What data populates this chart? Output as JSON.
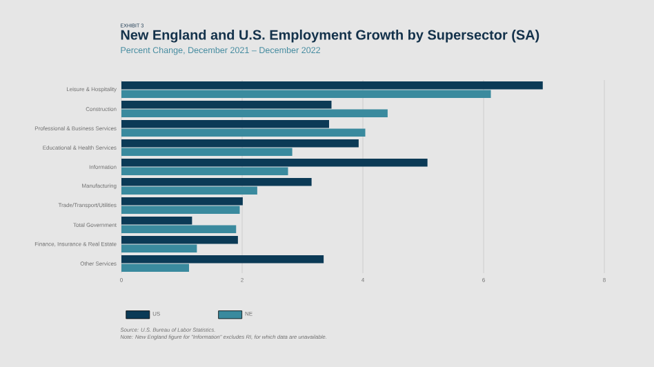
{
  "chart_data": {
    "type": "bar",
    "orientation": "horizontal",
    "title": "New England and U.S. Employment Growth by Supersector (SA)",
    "subtitle": "Percent Change, December 2021 – December 2022",
    "categories": [
      "Leisure & Hospitality",
      "Construction",
      "Professional & Business Services",
      "Educational & Health Services",
      "Information",
      "Manufacturing",
      "Trade/Transport/Utilities",
      "Total Government",
      "Finance, Insurance & Real Estate",
      "Other Services"
    ],
    "series": [
      {
        "name": "US",
        "color": "#0b3a56",
        "values": [
          6.98,
          3.48,
          3.44,
          3.93,
          5.07,
          3.15,
          2.01,
          1.17,
          1.93,
          3.35
        ]
      },
      {
        "name": "NE",
        "color": "#3a8a9e",
        "values": [
          6.12,
          4.41,
          4.04,
          2.83,
          2.76,
          2.25,
          1.96,
          1.9,
          1.25,
          1.12
        ]
      }
    ],
    "xlim": [
      0,
      8
    ],
    "xticks": [
      0,
      2,
      4,
      6,
      8
    ],
    "grid": "x",
    "legend": "bottom",
    "annotations": [
      "EXHIBIT 3",
      "Source: U.S. Bureau of Labor Statistics.",
      "Note: New England figure for \"Information\" excludes RI, for which data are unavailable."
    ]
  }
}
